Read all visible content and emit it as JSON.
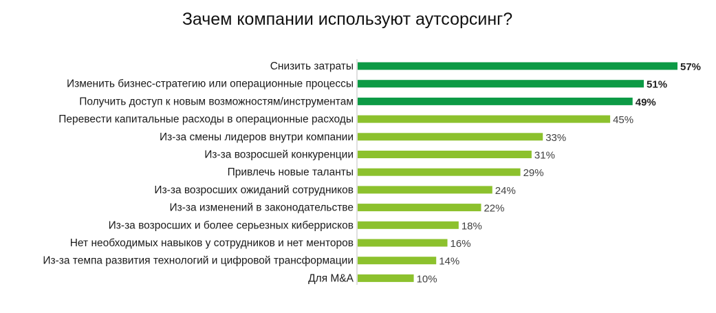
{
  "chart_data": {
    "type": "bar",
    "orientation": "horizontal",
    "title": "Зачем компании используют аутсорсинг?",
    "xlabel": "",
    "ylabel": "",
    "xlim": [
      0,
      57
    ],
    "grid": false,
    "legend": "none",
    "colors": {
      "highlight": "#0c9a45",
      "normal": "#8cc12d",
      "axis": "#bfbfbf"
    },
    "categories": [
      "Снизить затраты",
      "Изменить бизнес-стратегию или операционные процессы",
      "Получить доступ к новым возможностям/инструментам",
      "Перевести капитальные расходы в операционные расходы",
      "Из-за смены лидеров внутри компании",
      "Из-за возросшей конкуренции",
      "Привлечь новые таланты",
      "Из-за возросших ожиданий сотрудников",
      "Из-за изменений в законодательстве",
      "Из-за возросших и более серьезных киберрисков",
      "Нет необходимых навыков у сотрудников и нет менторов",
      "Из-за темпа развития технологий и цифровой трансформации",
      "Для M&A"
    ],
    "values": [
      57,
      51,
      49,
      45,
      33,
      31,
      29,
      24,
      22,
      18,
      16,
      14,
      10
    ],
    "value_labels": [
      "57%",
      "51%",
      "49%",
      "45%",
      "33%",
      "31%",
      "29%",
      "24%",
      "22%",
      "18%",
      "16%",
      "14%",
      "10%"
    ],
    "highlighted": [
      true,
      true,
      true,
      false,
      false,
      false,
      false,
      false,
      false,
      false,
      false,
      false,
      false
    ]
  }
}
